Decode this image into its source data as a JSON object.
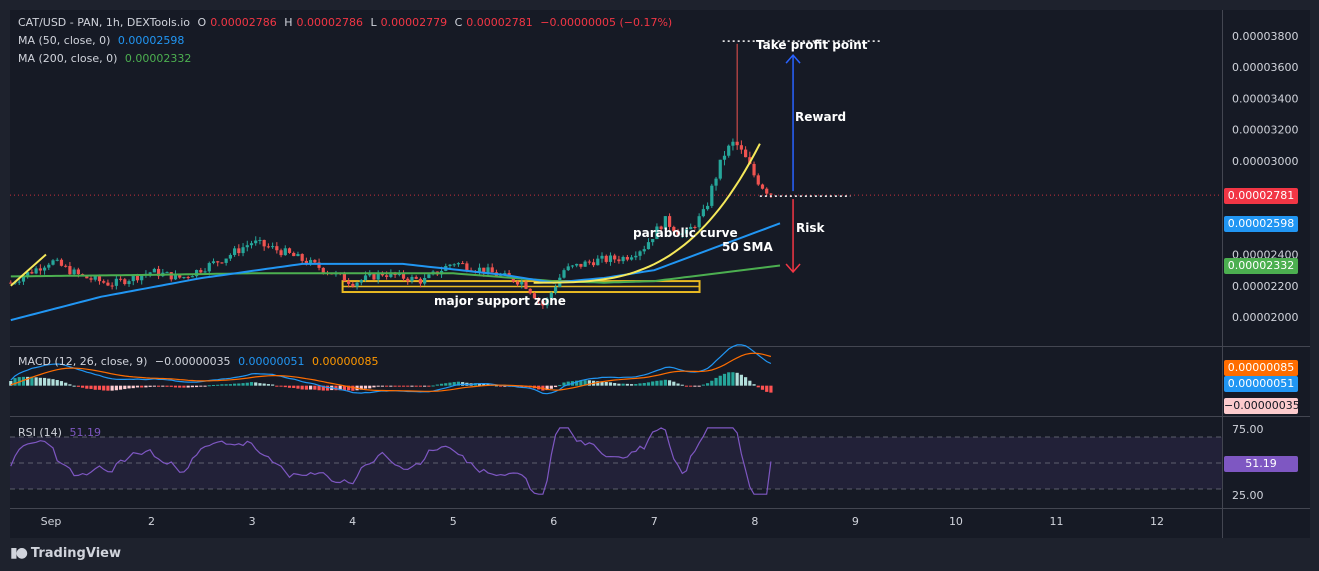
{
  "header": {
    "symbol": "CAT/USD - PAN, 1h, DEXTools.io",
    "o_label": "O",
    "o_value": "0.00002786",
    "h_label": "H",
    "h_value": "0.00002786",
    "l_label": "L",
    "l_value": "0.00002779",
    "c_label": "C",
    "c_value": "0.00002781",
    "change": "−0.00000005 (−0.17%)"
  },
  "ma50": {
    "label": "MA (50, close, 0)",
    "value": "0.00002598",
    "color": "#2196f3"
  },
  "ma200": {
    "label": "MA (200, close, 0)",
    "value": "0.00002332",
    "color": "#4caf50"
  },
  "macd": {
    "label": "MACD (12, 26, close, 9)",
    "hist": "−0.00000035",
    "macd": "0.00000051",
    "signal": "0.00000085",
    "badge_signal": "0.00000085",
    "badge_macd": "0.00000051",
    "badge_hist": "−0.00000035"
  },
  "rsi": {
    "label": "RSI (14)",
    "value": "51.19",
    "badge": "51.19",
    "ticks": [
      "75.00",
      "25.00"
    ]
  },
  "price_badges": {
    "last": "0.00002781",
    "ma50": "0.00002598",
    "ma200": "0.00002332"
  },
  "annotations": {
    "take_profit": "Take profit point",
    "reward": "Reward",
    "risk": "Risk",
    "parabolic": "parabolic curve",
    "sma50": "50 SMA",
    "support": "major support  zone"
  },
  "brand": "TradingView",
  "chart_data": {
    "type": "candlestick",
    "y_ticks": [
      "0.00003800",
      "0.00003600",
      "0.00003400",
      "0.00003200",
      "0.00003000",
      "0.00002400",
      "0.00002200",
      "0.00002000"
    ],
    "y_tick_values": [
      3.8e-05,
      3.6e-05,
      3.4e-05,
      3.2e-05,
      3e-05,
      2.4e-05,
      2.2e-05,
      2e-05
    ],
    "x_ticks": [
      "Sep",
      "2",
      "3",
      "4",
      "5",
      "6",
      "7",
      "8",
      "9",
      "10",
      "11",
      "12"
    ],
    "x_tick_days": [
      1,
      2,
      3,
      4,
      5,
      6,
      7,
      8,
      9,
      10,
      11,
      12
    ],
    "price_anchor_days": [
      0.6,
      1.0,
      1.3,
      1.6,
      2.0,
      2.3,
      2.7,
      3.0,
      3.3,
      3.7,
      4.0,
      4.3,
      4.7,
      5.0,
      5.3,
      5.7,
      5.9,
      6.1,
      6.4,
      6.7,
      6.9,
      7.1,
      7.3,
      7.5,
      7.6,
      7.7,
      7.8,
      7.9,
      8.0,
      8.1,
      8.2
    ],
    "price_anchor_values": [
      2.22e-05,
      2.36e-05,
      2.26e-05,
      2.21e-05,
      2.29e-05,
      2.25e-05,
      2.37e-05,
      2.48e-05,
      2.42e-05,
      2.31e-05,
      2.22e-05,
      2.28e-05,
      2.23e-05,
      2.35e-05,
      2.3e-05,
      2.22e-05,
      2.07e-05,
      2.3e-05,
      2.36e-05,
      2.38e-05,
      2.45e-05,
      2.62e-05,
      2.52e-05,
      2.67e-05,
      2.88e-05,
      3.05e-05,
      3.12e-05,
      3.02e-05,
      2.9e-05,
      2.82e-05,
      2.78e-05
    ],
    "ma50_days": [
      0.6,
      1.5,
      2.5,
      3.5,
      4.5,
      5.5,
      6.0,
      6.5,
      7.0,
      7.5,
      8.0,
      8.25
    ],
    "ma50_values": [
      1.98e-05,
      2.13e-05,
      2.25e-05,
      2.34e-05,
      2.34e-05,
      2.27e-05,
      2.22e-05,
      2.25e-05,
      2.3e-05,
      2.42e-05,
      2.54e-05,
      2.6e-05
    ],
    "ma200_days": [
      0.6,
      2.0,
      3.0,
      4.0,
      5.0,
      6.0,
      6.5,
      7.0,
      7.5,
      8.0,
      8.25
    ],
    "ma200_values": [
      2.26e-05,
      2.27e-05,
      2.28e-05,
      2.28e-05,
      2.28e-05,
      2.23e-05,
      2.22e-05,
      2.23e-05,
      2.27e-05,
      2.31e-05,
      2.33e-05
    ],
    "high_spike": {
      "day": 7.82,
      "value": 3.75e-05
    },
    "support_zone": {
      "day_from": 3.9,
      "day_to": 7.45,
      "low": 2.16e-05,
      "high": 2.23e-05
    },
    "take_profit_level": 3.69e-05,
    "last_price": 2.781e-05,
    "risk_target": 2.32e-05,
    "macd_range": [
      -1.2e-06,
      1.5e-06
    ],
    "rsi_range": [
      20,
      80
    ],
    "rsi_levels": [
      70,
      50,
      30
    ],
    "last_rsi": 51.19,
    "grid": false,
    "legend_position": "top-left"
  }
}
